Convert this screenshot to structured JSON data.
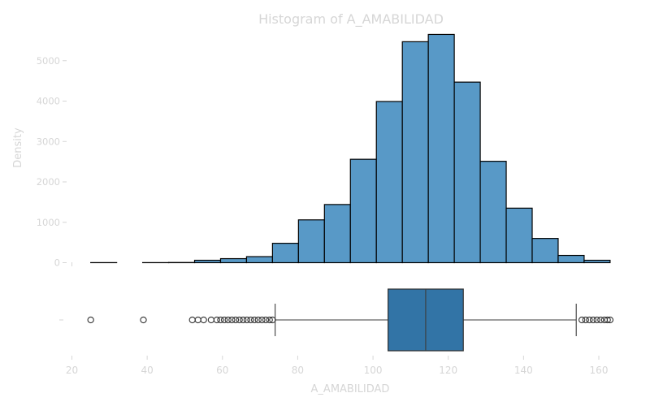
{
  "chart_data": {
    "type": "bar",
    "title": "Histogram of A_AMABILIDAD",
    "xlabel": "A_AMABILIDAD",
    "ylabel": "Density",
    "xlim": [
      20,
      165
    ],
    "ylim": [
      0,
      5900
    ],
    "grid": false,
    "x_ticks": [
      20,
      40,
      60,
      80,
      100,
      120,
      140,
      160
    ],
    "y_ticks": [
      0,
      1000,
      2000,
      3000,
      4000,
      5000
    ],
    "histogram": {
      "bins": [
        {
          "start": 25.0,
          "end": 31.9,
          "value": 2
        },
        {
          "start": 31.9,
          "end": 38.8,
          "value": 0
        },
        {
          "start": 38.8,
          "end": 45.7,
          "value": 2
        },
        {
          "start": 45.7,
          "end": 52.6,
          "value": 5
        },
        {
          "start": 52.6,
          "end": 59.5,
          "value": 60
        },
        {
          "start": 59.5,
          "end": 66.4,
          "value": 100
        },
        {
          "start": 66.4,
          "end": 73.3,
          "value": 150
        },
        {
          "start": 73.3,
          "end": 80.2,
          "value": 480
        },
        {
          "start": 80.2,
          "end": 87.1,
          "value": 1060
        },
        {
          "start": 87.1,
          "end": 94.0,
          "value": 1440
        },
        {
          "start": 94.0,
          "end": 100.9,
          "value": 2560
        },
        {
          "start": 100.9,
          "end": 107.8,
          "value": 3990
        },
        {
          "start": 107.8,
          "end": 114.7,
          "value": 5470
        },
        {
          "start": 114.7,
          "end": 121.6,
          "value": 5650
        },
        {
          "start": 121.6,
          "end": 128.5,
          "value": 4470
        },
        {
          "start": 128.5,
          "end": 135.4,
          "value": 2510
        },
        {
          "start": 135.4,
          "end": 142.3,
          "value": 1350
        },
        {
          "start": 142.3,
          "end": 149.2,
          "value": 600
        },
        {
          "start": 149.2,
          "end": 156.1,
          "value": 180
        },
        {
          "start": 156.1,
          "end": 163.0,
          "value": 60
        }
      ]
    },
    "boxplot": {
      "q1": 104,
      "median": 114,
      "q3": 124,
      "whisker_low": 74,
      "whisker_high": 154,
      "outliers": [
        25,
        39,
        52,
        53.5,
        55,
        57,
        58.5,
        59.5,
        60.5,
        61.5,
        62.5,
        63.5,
        64.5,
        65.5,
        66.5,
        67.5,
        68.5,
        69.5,
        70.5,
        71.5,
        72.5,
        73.3,
        155.5,
        156.5,
        157.5,
        158.5,
        159.5,
        160.5,
        161.5,
        162.3,
        163
      ]
    },
    "colors": {
      "bar_fill": "#5899c7",
      "bar_edge": "#000000",
      "box_fill": "#3274a6",
      "text": "#d6d6d6"
    }
  }
}
